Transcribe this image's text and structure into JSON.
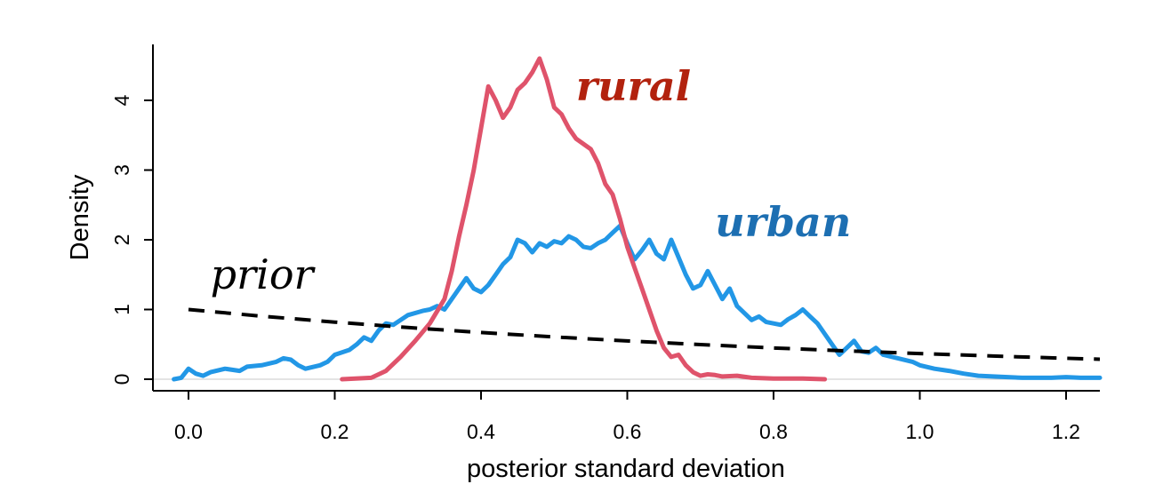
{
  "chart_data": {
    "type": "line",
    "title": "",
    "xlabel": "posterior standard deviation",
    "ylabel": "Density",
    "xlim": [
      -0.04,
      1.25
    ],
    "ylim": [
      0,
      4.8
    ],
    "x_ticks": [
      0.0,
      0.2,
      0.4,
      0.6,
      0.8,
      1.0,
      1.2
    ],
    "x_tick_labels": [
      "0.0",
      "0.2",
      "0.4",
      "0.6",
      "0.8",
      "1.0",
      "1.2"
    ],
    "y_ticks": [
      0,
      1,
      2,
      3,
      4
    ],
    "y_tick_labels": [
      "0",
      "1",
      "2",
      "3",
      "4"
    ],
    "grid": false,
    "legend": "none",
    "annotations": [
      {
        "text": "rural",
        "series": "rural",
        "x": 0.53,
        "y": 4.0,
        "color": "#b2220e",
        "weight": "bold"
      },
      {
        "text": "urban",
        "series": "urban",
        "x": 0.72,
        "y": 2.05,
        "color": "#1d6fb2",
        "weight": "bold"
      },
      {
        "text": "prior",
        "series": "prior",
        "x": 0.03,
        "y": 1.3,
        "color": "#000000",
        "weight": "normal"
      }
    ],
    "series": [
      {
        "name": "rural",
        "color": "#df536b",
        "style": "solid",
        "x": [
          0.21,
          0.25,
          0.27,
          0.29,
          0.31,
          0.33,
          0.35,
          0.36,
          0.37,
          0.38,
          0.39,
          0.4,
          0.41,
          0.42,
          0.43,
          0.44,
          0.45,
          0.46,
          0.47,
          0.48,
          0.49,
          0.5,
          0.51,
          0.52,
          0.53,
          0.55,
          0.56,
          0.57,
          0.58,
          0.59,
          0.6,
          0.61,
          0.62,
          0.63,
          0.64,
          0.65,
          0.66,
          0.67,
          0.68,
          0.69,
          0.7,
          0.71,
          0.72,
          0.73,
          0.75,
          0.77,
          0.8,
          0.84,
          0.87
        ],
        "y": [
          0.0,
          0.02,
          0.12,
          0.32,
          0.55,
          0.8,
          1.15,
          1.55,
          2.05,
          2.5,
          3.0,
          3.6,
          4.2,
          4.0,
          3.75,
          3.9,
          4.15,
          4.25,
          4.4,
          4.6,
          4.3,
          3.9,
          3.8,
          3.6,
          3.45,
          3.3,
          3.1,
          2.8,
          2.65,
          2.3,
          1.9,
          1.6,
          1.3,
          1.0,
          0.7,
          0.45,
          0.32,
          0.35,
          0.2,
          0.1,
          0.05,
          0.07,
          0.06,
          0.04,
          0.05,
          0.02,
          0.01,
          0.01,
          0.0
        ]
      },
      {
        "name": "urban",
        "color": "#2297e6",
        "style": "solid",
        "x": [
          -0.02,
          -0.01,
          0.0,
          0.01,
          0.02,
          0.03,
          0.05,
          0.07,
          0.08,
          0.1,
          0.12,
          0.13,
          0.14,
          0.15,
          0.16,
          0.18,
          0.19,
          0.2,
          0.22,
          0.23,
          0.24,
          0.25,
          0.26,
          0.27,
          0.28,
          0.3,
          0.32,
          0.33,
          0.34,
          0.35,
          0.36,
          0.37,
          0.38,
          0.39,
          0.4,
          0.41,
          0.42,
          0.43,
          0.44,
          0.45,
          0.46,
          0.47,
          0.48,
          0.49,
          0.5,
          0.51,
          0.52,
          0.53,
          0.54,
          0.55,
          0.56,
          0.57,
          0.58,
          0.59,
          0.6,
          0.61,
          0.62,
          0.63,
          0.64,
          0.65,
          0.66,
          0.67,
          0.68,
          0.69,
          0.7,
          0.71,
          0.72,
          0.73,
          0.74,
          0.75,
          0.76,
          0.77,
          0.78,
          0.79,
          0.8,
          0.81,
          0.82,
          0.83,
          0.84,
          0.85,
          0.86,
          0.87,
          0.88,
          0.89,
          0.9,
          0.91,
          0.92,
          0.93,
          0.94,
          0.95,
          0.97,
          0.99,
          1.0,
          1.02,
          1.04,
          1.06,
          1.08,
          1.1,
          1.12,
          1.14,
          1.16,
          1.18,
          1.2,
          1.22,
          1.25
        ],
        "y": [
          0.0,
          0.02,
          0.15,
          0.08,
          0.05,
          0.1,
          0.15,
          0.12,
          0.18,
          0.2,
          0.25,
          0.3,
          0.28,
          0.2,
          0.15,
          0.2,
          0.25,
          0.35,
          0.42,
          0.5,
          0.6,
          0.55,
          0.7,
          0.8,
          0.78,
          0.92,
          0.98,
          1.0,
          1.05,
          1.0,
          1.15,
          1.3,
          1.45,
          1.3,
          1.25,
          1.35,
          1.5,
          1.65,
          1.75,
          2.0,
          1.95,
          1.82,
          1.95,
          1.9,
          1.98,
          1.95,
          2.05,
          2.0,
          1.9,
          1.88,
          1.95,
          2.0,
          2.1,
          2.2,
          1.95,
          1.72,
          1.85,
          2.0,
          1.8,
          1.72,
          2.0,
          1.75,
          1.5,
          1.3,
          1.35,
          1.55,
          1.35,
          1.15,
          1.3,
          1.05,
          0.95,
          0.85,
          0.9,
          0.82,
          0.8,
          0.78,
          0.86,
          0.92,
          1.0,
          0.9,
          0.8,
          0.65,
          0.5,
          0.35,
          0.45,
          0.55,
          0.4,
          0.38,
          0.45,
          0.35,
          0.3,
          0.25,
          0.2,
          0.15,
          0.12,
          0.08,
          0.05,
          0.04,
          0.03,
          0.02,
          0.02,
          0.02,
          0.03,
          0.02,
          0.02
        ]
      },
      {
        "name": "prior",
        "color": "#000000",
        "style": "dashed",
        "x": [
          0.0,
          0.1,
          0.2,
          0.3,
          0.4,
          0.5,
          0.6,
          0.7,
          0.8,
          0.9,
          1.0,
          1.1,
          1.2,
          1.25
        ],
        "y": [
          1.0,
          0.905,
          0.819,
          0.741,
          0.67,
          0.607,
          0.549,
          0.497,
          0.449,
          0.407,
          0.368,
          0.333,
          0.301,
          0.287
        ]
      }
    ]
  }
}
